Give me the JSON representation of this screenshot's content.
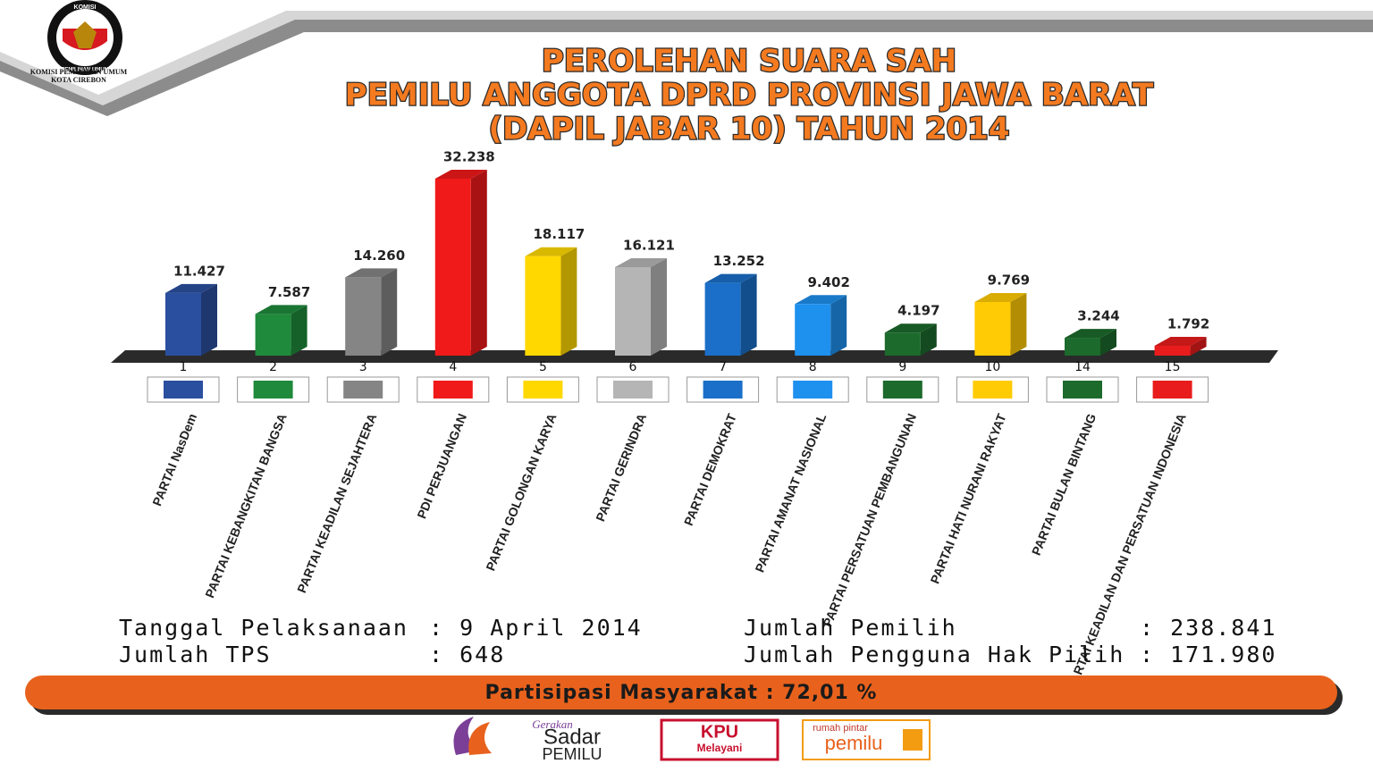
{
  "header": {
    "logo_top": "KOMISI",
    "logo_ring": "PEMILIHAN UMUM",
    "org": "KOMISI PEMILIHAN UMUM",
    "city": "KOTA CIREBON"
  },
  "chart_data": {
    "type": "bar3d",
    "title": [
      "PEROLEHAN SUARA SAH",
      "PEMILU ANGGOTA DPRD PROVINSI JAWA BARAT",
      "(DAPIL JABAR 10) TAHUN 2014"
    ],
    "party_numbers": [
      1,
      2,
      3,
      4,
      5,
      6,
      7,
      8,
      9,
      10,
      14,
      15
    ],
    "categories": [
      "PARTAI NasDem",
      "PARTAI KEBANGKITAN BANGSA",
      "PARTAI KEADILAN SEJAHTERA",
      "PDI PERJUANGAN",
      "PARTAI GOLONGAN KARYA",
      "PARTAI  GERINDRA",
      "PARTAI DEMOKRAT",
      "PARTAI AMANAT NASIONAL",
      "PARTAI PERSATUAN PEMBANGUNAN",
      "PARTAI HATI NURANI RAKYAT",
      "PARTAI BULAN BINTANG",
      "PARTAI KEADILAN DAN PERSATUAN INDONESIA"
    ],
    "values": [
      11427,
      7587,
      14260,
      32238,
      18117,
      16121,
      13252,
      9402,
      4197,
      9769,
      3244,
      1792
    ],
    "value_labels": [
      "11.427",
      "7.587",
      "14.260",
      "32.238",
      "18.117",
      "16.121",
      "13.252",
      "9.402",
      "4.197",
      "9.769",
      "3.244",
      "1.792"
    ],
    "colors": [
      "#2b4f9f",
      "#1f8a3b",
      "#858585",
      "#f01a1a",
      "#ffd800",
      "#b5b5b5",
      "#1b6fc8",
      "#1e90ee",
      "#1c6a2c",
      "#ffcb05",
      "#1c6a2c",
      "#e81c1c"
    ]
  },
  "summary": {
    "left": [
      {
        "label": "Tanggal Pelaksanaan",
        "value": ": 9 April 2014"
      },
      {
        "label": "Jumlah TPS",
        "value": ": 648"
      }
    ],
    "right": [
      {
        "label": "Jumlah Pemilih",
        "value": ": 238.841"
      },
      {
        "label": "Jumlah Pengguna Hak Pilih",
        "value": ": 171.980"
      }
    ],
    "participation": "Partisipasi Masyarakat : 72,01 %"
  },
  "footer": {
    "logo1_top": "Gerakan",
    "logo1_main": "Sadar",
    "logo1_bottom": "PEMILU",
    "logo2_main": "KPU",
    "logo2_sub": "Melayani",
    "logo3_top": "rumah pintar",
    "logo3_main": "pemilu"
  }
}
